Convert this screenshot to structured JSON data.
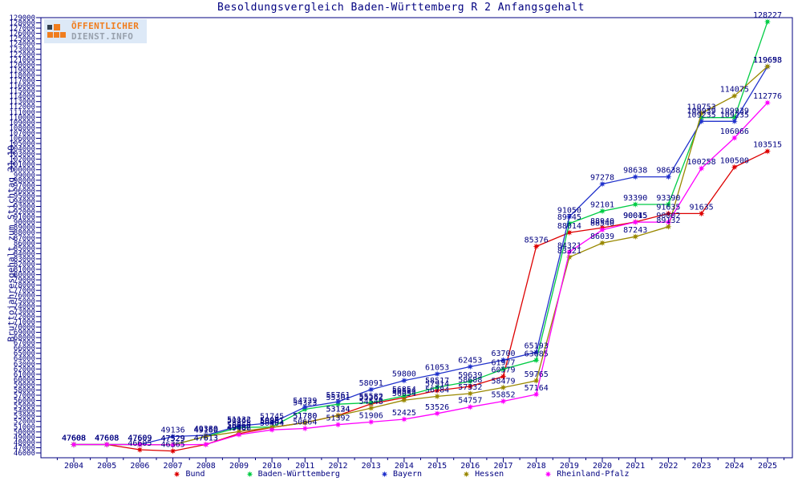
{
  "title": "Besoldungsvergleich Baden-Württemberg R 2 Anfangsgehalt",
  "y_axis_title": "Bruttojahresgehalt zum Stichtag 31.10.",
  "logo": {
    "line1": "ÖFFENTLICHER",
    "line2": "DIENST.INFO"
  },
  "colors": {
    "frame": "#000080",
    "text": "#000080",
    "background": "#ffffff",
    "logo_orange": "#f07d1e",
    "logo_gray": "#98a1ad"
  },
  "chart_data": {
    "type": "line",
    "title": "Besoldungsvergleich Baden-Württemberg R 2 Anfangsgehalt",
    "ylabel": "Bruttojahresgehalt zum Stichtag 31.10.",
    "xlabel": "",
    "x": [
      2004,
      2005,
      2006,
      2007,
      2008,
      2009,
      2010,
      2011,
      2012,
      2013,
      2014,
      2015,
      2016,
      2017,
      2018,
      2019,
      2020,
      2021,
      2022,
      2023,
      2024,
      2025
    ],
    "ylim": [
      46000,
      129000
    ],
    "ytick_step": 1000,
    "grid": false,
    "legend_position": "bottom",
    "point_labels": true,
    "series": [
      {
        "name": "Bund",
        "color": "#dd0000",
        "values": [
          47608,
          47608,
          46605,
          46365,
          47613,
          49687,
          50861,
          51780,
          53134,
          55362,
          56554,
          57914,
          58688,
          60579,
          85376,
          88014,
          88940,
          90045,
          91635,
          91635,
          100500,
          103515
        ]
      },
      {
        "name": "Baden-Württemberg",
        "color": "#00cc44",
        "values": [
          47608,
          47608,
          47609,
          47529,
          49160,
          50866,
          50951,
          54323,
          55301,
          55582,
          56854,
          58517,
          59639,
          61977,
          63685,
          89745,
          92101,
          93390,
          93390,
          109939,
          109939,
          128227
        ]
      },
      {
        "name": "Bayern",
        "color": "#2233cc",
        "values": [
          47608,
          47608,
          47609,
          49136,
          49380,
          51132,
          51745,
          54729,
          55761,
          58091,
          59800,
          61053,
          62453,
          63700,
          65193,
          91050,
          97278,
          98638,
          98638,
          109235,
          109235,
          119653
        ]
      },
      {
        "name": "Hessen",
        "color": "#998800",
        "values": [
          47608,
          47608,
          47609,
          47529,
          49160,
          50060,
          50881,
          51780,
          53124,
          54548,
          56054,
          56784,
          57332,
          58479,
          59765,
          83321,
          86039,
          87243,
          89132,
          110753,
          114075,
          119698
        ]
      },
      {
        "name": "Rheinland-Pfalz",
        "color": "#ff00ff",
        "values": [
          47608,
          47608,
          47609,
          47529,
          47613,
          49486,
          50404,
          50664,
          51392,
          51906,
          52425,
          53526,
          54757,
          55852,
          57164,
          84321,
          88540,
          90015,
          90002,
          100258,
          106066,
          112776
        ]
      }
    ]
  }
}
